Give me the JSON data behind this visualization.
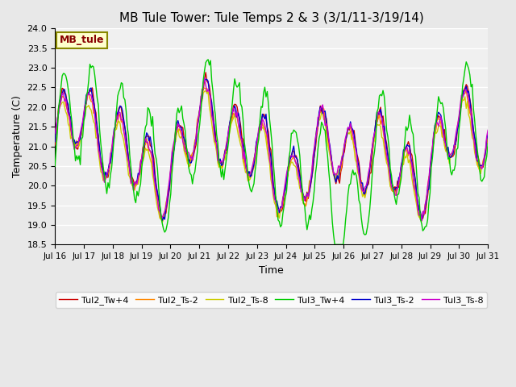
{
  "title": "MB Tule Tower: Tule Temps 2 & 3 (3/1/11-3/19/14)",
  "xlabel": "Time",
  "ylabel": "Temperature (C)",
  "ylim": [
    18.5,
    24.0
  ],
  "yticks": [
    18.5,
    19.0,
    19.5,
    20.0,
    20.5,
    21.0,
    21.5,
    22.0,
    22.5,
    23.0,
    23.5,
    24.0
  ],
  "xtick_labels": [
    "Jul 16",
    "Jul 17",
    "Jul 18",
    "Jul 19",
    "Jul 20",
    "Jul 21",
    "Jul 22",
    "Jul 23",
    "Jul 24",
    "Jul 25",
    "Jul 26",
    "Jul 27",
    "Jul 28",
    "Jul 29",
    "Jul 30",
    "Jul 31"
  ],
  "n_days": 15,
  "pts_per_day": 24,
  "background_color": "#e8e8e8",
  "plot_bg_color": "#f0f0f0",
  "grid_color": "#ffffff",
  "series_colors": {
    "Tul2_Tw+4": "#cc0000",
    "Tul2_Ts-2": "#ff8800",
    "Tul2_Ts-8": "#cccc00",
    "Tul3_Tw+4": "#00cc00",
    "Tul3_Ts-2": "#0000cc",
    "Tul3_Ts-8": "#cc00cc"
  },
  "legend_label": "MB_tule",
  "legend_box_color": "#ffffcc",
  "legend_box_edge": "#888800",
  "legend_text_color": "#880000"
}
